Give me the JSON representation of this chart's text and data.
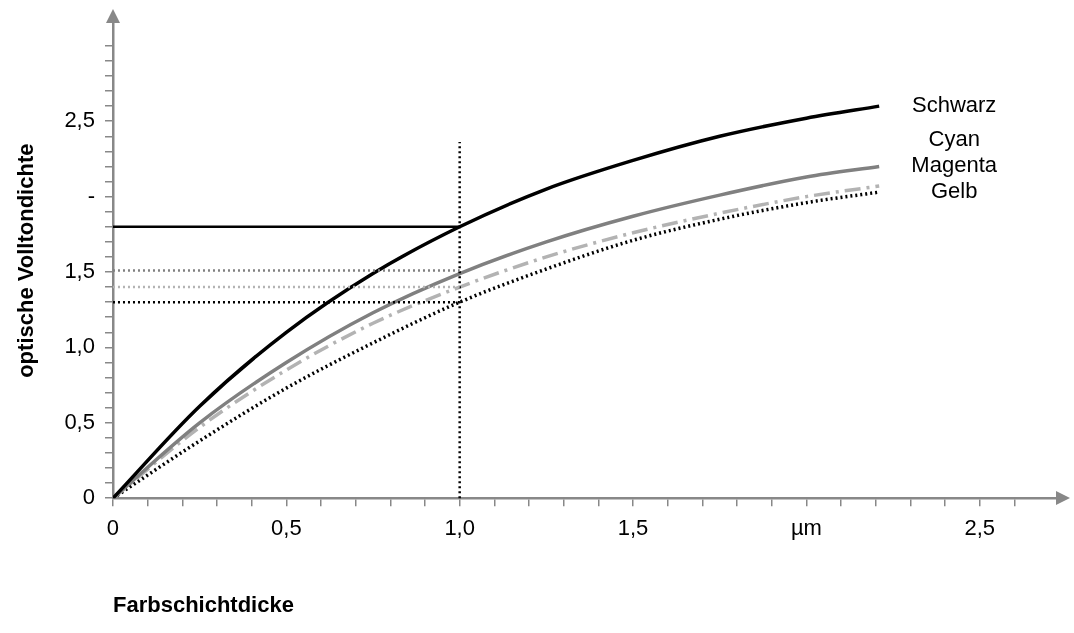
{
  "chart_data": {
    "type": "line",
    "xlabel": "Farbschichtdicke",
    "ylabel": "optische Volltondichte",
    "x": [
      0,
      0.25,
      0.5,
      0.75,
      1,
      1.25,
      1.5,
      1.75,
      2,
      2.21
    ],
    "series": [
      {
        "name": "Schwarz",
        "color": "#000000",
        "line_style": "solid",
        "values": [
          0,
          0.61,
          1.1,
          1.49,
          1.8,
          2.05,
          2.24,
          2.4,
          2.52,
          2.6
        ]
      },
      {
        "name": "Cyan",
        "color": "#808080",
        "line_style": "solid",
        "values": [
          0,
          0.5,
          0.9,
          1.23,
          1.49,
          1.7,
          1.87,
          2.01,
          2.13,
          2.2
        ]
      },
      {
        "name": "Magenta",
        "color": "#b3b3b3",
        "line_style": "dashed",
        "values": [
          0,
          0.47,
          0.85,
          1.16,
          1.4,
          1.6,
          1.76,
          1.89,
          2.0,
          2.07
        ]
      },
      {
        "name": "Gelb",
        "color": "#000000",
        "line_style": "dotted",
        "values": [
          0,
          0.38,
          0.73,
          1.03,
          1.3,
          1.52,
          1.71,
          1.85,
          1.96,
          2.03
        ]
      }
    ],
    "xlim": [
      0,
      2.72
    ],
    "ylim": [
      0,
      3.15
    ],
    "xticks": [
      0,
      {
        "value": 0.1,
        "label": null
      },
      {
        "value": 0.2,
        "label": null
      },
      {
        "value": 0.3,
        "label": null
      },
      {
        "value": 0.4,
        "label": null
      },
      {
        "value": 0.5,
        "label": "0,5"
      },
      {
        "value": 0.6,
        "label": null
      },
      {
        "value": 0.7,
        "label": null
      },
      {
        "value": 0.8,
        "label": null
      },
      {
        "value": 0.9,
        "label": null
      },
      {
        "value": 1,
        "label": "1,0"
      },
      {
        "value": 1.1,
        "label": null
      },
      {
        "value": 1.2,
        "label": null
      },
      {
        "value": 1.3,
        "label": null
      },
      {
        "value": 1.4,
        "label": null
      },
      {
        "value": 1.5,
        "label": "1,5"
      },
      {
        "value": 1.6,
        "label": null
      },
      {
        "value": 1.7,
        "label": null
      },
      {
        "value": 1.8,
        "label": null
      },
      {
        "value": 1.9,
        "label": null
      },
      {
        "value": 2,
        "label": "µm"
      },
      {
        "value": 2.1,
        "label": null
      },
      {
        "value": 2.2,
        "label": null
      },
      {
        "value": 2.3,
        "label": null
      },
      {
        "value": 2.4,
        "label": null
      },
      {
        "value": 2.5,
        "label": "2,5"
      },
      {
        "value": 2.6,
        "label": null
      }
    ],
    "yticks": [
      0,
      {
        "value": 0.1,
        "label": null
      },
      {
        "value": 0.2,
        "label": null
      },
      {
        "value": 0.3,
        "label": null
      },
      {
        "value": 0.4,
        "label": null
      },
      {
        "value": 0.5,
        "label": "0,5"
      },
      {
        "value": 0.6,
        "label": null
      },
      {
        "value": 0.7,
        "label": null
      },
      {
        "value": 0.8,
        "label": null
      },
      {
        "value": 0.9,
        "label": null
      },
      {
        "value": 1,
        "label": "1,0"
      },
      {
        "value": 1.1,
        "label": null
      },
      {
        "value": 1.2,
        "label": null
      },
      {
        "value": 1.3,
        "label": null
      },
      {
        "value": 1.4,
        "label": null
      },
      {
        "value": 1.5,
        "label": "1,5"
      },
      {
        "value": 1.6,
        "label": null
      },
      {
        "value": 1.7,
        "label": null
      },
      {
        "value": 1.8,
        "label": null
      },
      {
        "value": 1.9,
        "label": null
      },
      {
        "value": 2,
        "label": "-"
      },
      {
        "value": 2.1,
        "label": null
      },
      {
        "value": 2.2,
        "label": null
      },
      {
        "value": 2.3,
        "label": null
      },
      {
        "value": 2.4,
        "label": null
      },
      {
        "value": 2.5,
        "label": "2,5"
      },
      {
        "value": 2.6,
        "label": null
      },
      {
        "value": 2.7,
        "label": null
      },
      {
        "value": 2.8,
        "label": null
      },
      {
        "value": 2.9,
        "label": null
      },
      {
        "value": 3.0,
        "label": null
      }
    ],
    "ref_lines": [
      {
        "axis": "x",
        "value": 1,
        "color": "#000000",
        "line_style": "dotted"
      },
      {
        "axis": "y",
        "value": 1.8,
        "color": "#000000",
        "line_style": "solid"
      },
      {
        "axis": "y",
        "value": 1.51,
        "color": "#808080",
        "line_style": "dotted"
      },
      {
        "axis": "y",
        "value": 1.4,
        "color": "#b3b3b3",
        "line_style": "dotted"
      },
      {
        "axis": "y",
        "value": 1.3,
        "color": "#000000",
        "line_style": "dotted"
      }
    ],
    "grid": false,
    "legend": false,
    "marker": "none"
  }
}
